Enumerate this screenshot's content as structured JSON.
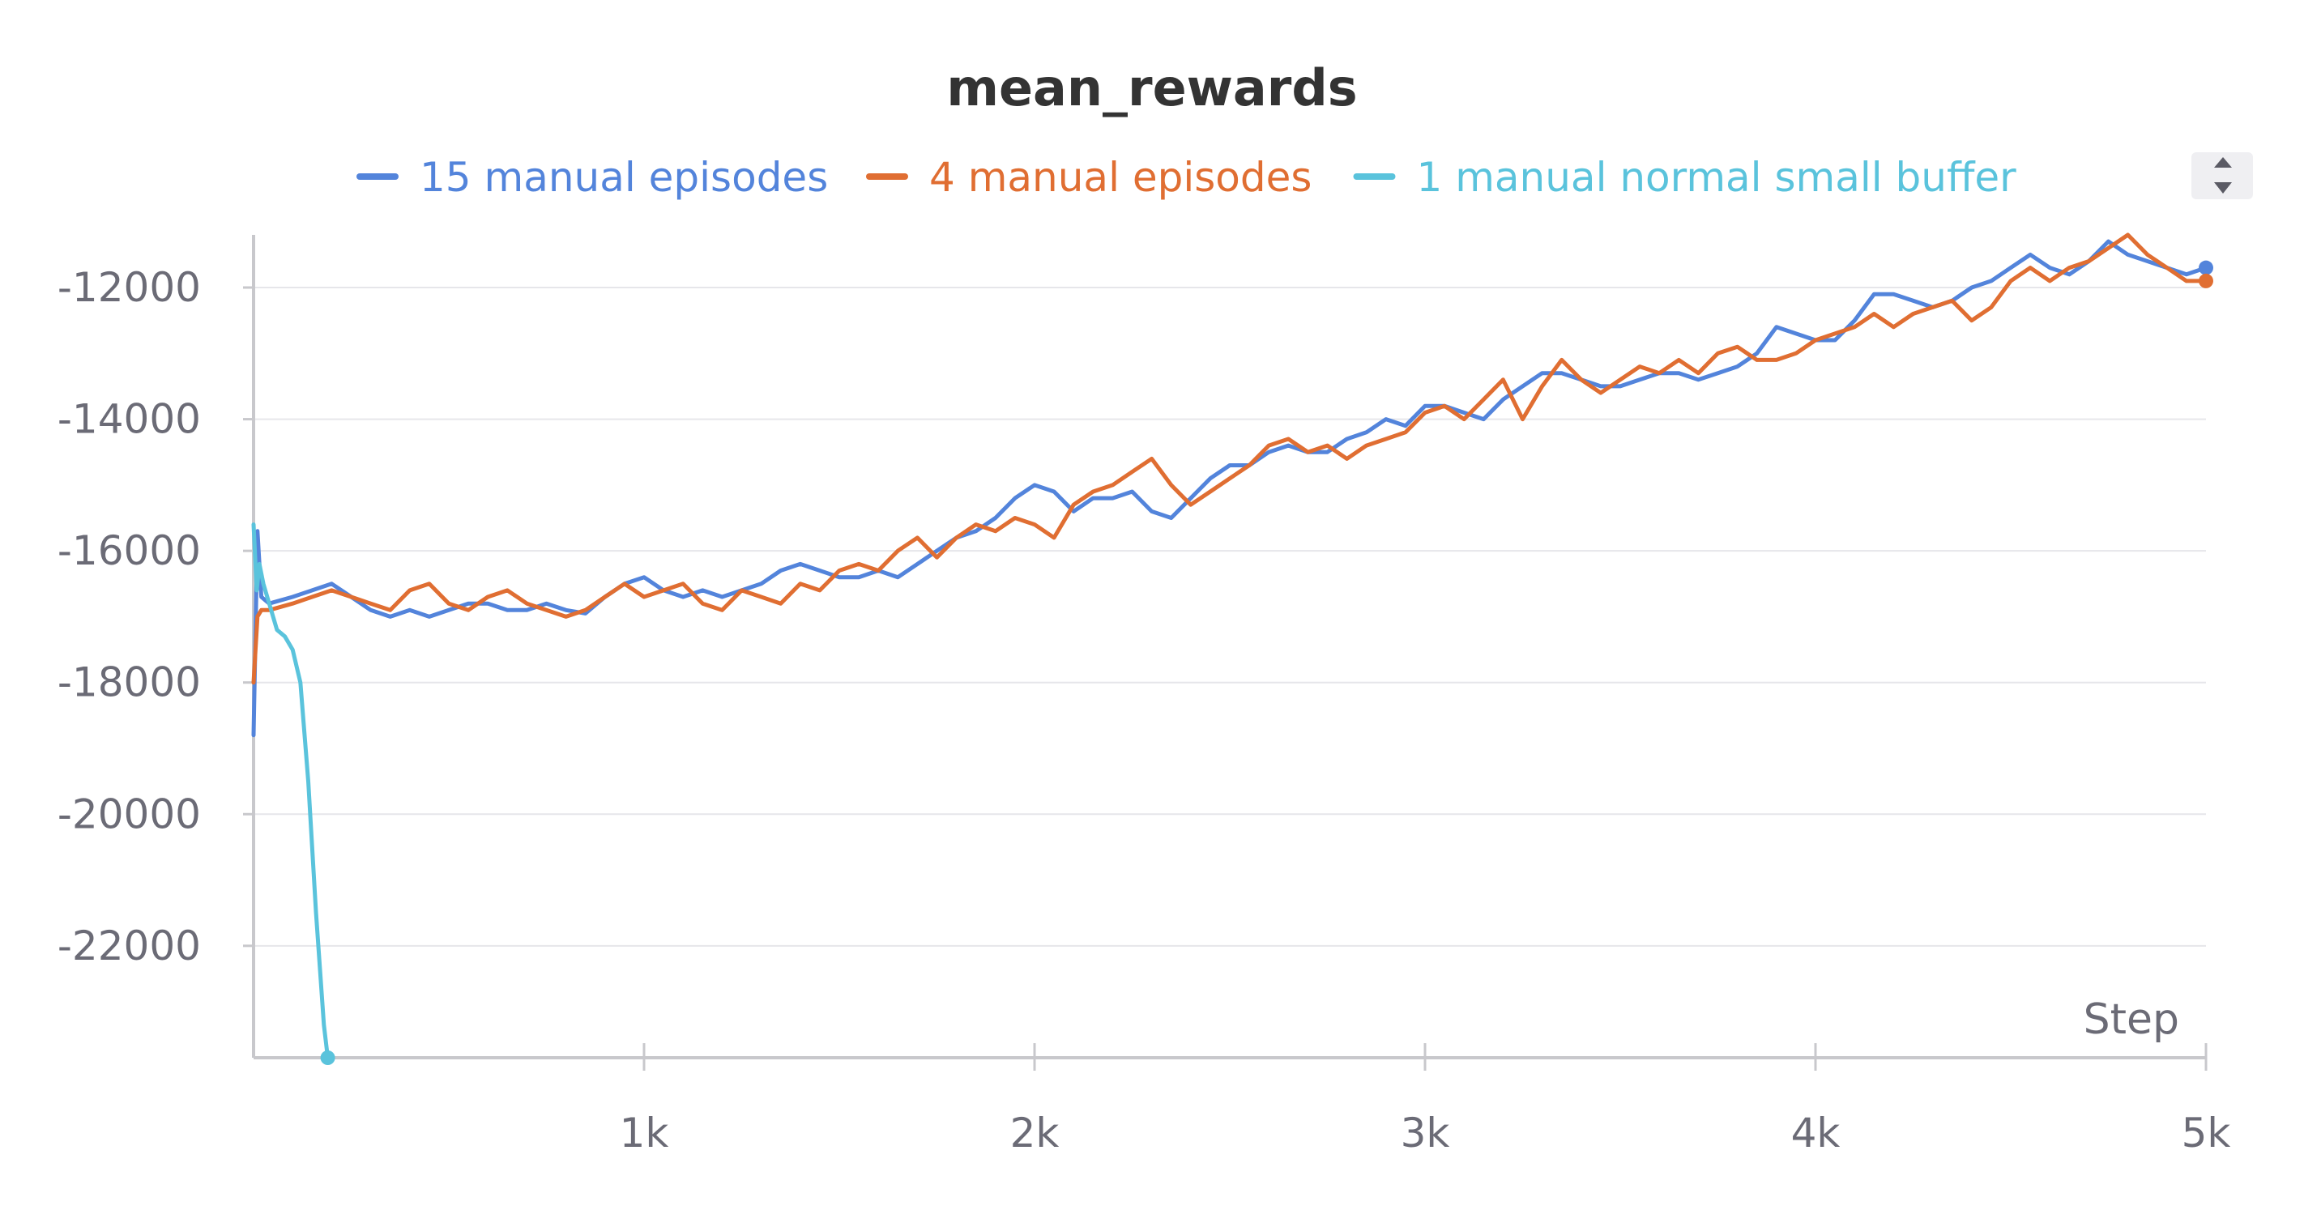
{
  "colors": {
    "series_0": "#5384db",
    "series_1": "#e06e32",
    "series_2": "#5ac3dc",
    "axis": "#c8c8cc",
    "grid": "#e6e6ea",
    "tick_text": "#6b6b76"
  },
  "chart_data": {
    "type": "line",
    "title": "mean_rewards",
    "xlabel": "Step",
    "ylabel": "",
    "xlim": [
      0,
      5000
    ],
    "ylim": [
      -23700,
      -11200
    ],
    "xticks": [
      {
        "value": 1000,
        "label": "1k"
      },
      {
        "value": 2000,
        "label": "2k"
      },
      {
        "value": 3000,
        "label": "3k"
      },
      {
        "value": 4000,
        "label": "4k"
      },
      {
        "value": 5000,
        "label": "5k"
      }
    ],
    "yticks": [
      {
        "value": -12000,
        "label": "-12000"
      },
      {
        "value": -14000,
        "label": "-14000"
      },
      {
        "value": -16000,
        "label": "-16000"
      },
      {
        "value": -18000,
        "label": "-18000"
      },
      {
        "value": -20000,
        "label": "-20000"
      },
      {
        "value": -22000,
        "label": "-22000"
      }
    ],
    "grid": true,
    "legend_position": "top",
    "series": [
      {
        "name": "15 manual episodes",
        "color": "#5384db",
        "x": [
          0,
          10,
          20,
          40,
          100,
          150,
          200,
          250,
          300,
          350,
          400,
          450,
          500,
          550,
          600,
          650,
          700,
          750,
          800,
          850,
          900,
          950,
          1000,
          1050,
          1100,
          1150,
          1200,
          1250,
          1300,
          1350,
          1400,
          1450,
          1500,
          1550,
          1600,
          1650,
          1700,
          1750,
          1800,
          1850,
          1900,
          1950,
          2000,
          2050,
          2100,
          2150,
          2200,
          2250,
          2300,
          2350,
          2400,
          2450,
          2500,
          2550,
          2600,
          2650,
          2700,
          2750,
          2800,
          2850,
          2900,
          2950,
          3000,
          3050,
          3100,
          3150,
          3200,
          3250,
          3300,
          3350,
          3400,
          3450,
          3500,
          3550,
          3600,
          3650,
          3700,
          3750,
          3800,
          3850,
          3900,
          3950,
          4000,
          4050,
          4100,
          4150,
          4200,
          4250,
          4300,
          4350,
          4400,
          4450,
          4500,
          4550,
          4600,
          4650,
          4700,
          4750,
          4800,
          4850,
          4900,
          4950,
          5000
        ],
        "y": [
          -18800,
          -15700,
          -16700,
          -16800,
          -16700,
          -16600,
          -16500,
          -16700,
          -16900,
          -17000,
          -16900,
          -17000,
          -16900,
          -16800,
          -16800,
          -16900,
          -16900,
          -16800,
          -16900,
          -16950,
          -16700,
          -16500,
          -16400,
          -16600,
          -16700,
          -16600,
          -16700,
          -16600,
          -16500,
          -16300,
          -16200,
          -16300,
          -16400,
          -16400,
          -16300,
          -16400,
          -16200,
          -16000,
          -15800,
          -15700,
          -15500,
          -15200,
          -15000,
          -15100,
          -15400,
          -15200,
          -15200,
          -15100,
          -15400,
          -15500,
          -15200,
          -14900,
          -14700,
          -14700,
          -14500,
          -14400,
          -14500,
          -14500,
          -14300,
          -14200,
          -14000,
          -14100,
          -13800,
          -13800,
          -13900,
          -14000,
          -13700,
          -13500,
          -13300,
          -13300,
          -13400,
          -13500,
          -13500,
          -13400,
          -13300,
          -13300,
          -13400,
          -13300,
          -13200,
          -13000,
          -12600,
          -12700,
          -12800,
          -12800,
          -12500,
          -12100,
          -12100,
          -12200,
          -12300,
          -12200,
          -12000,
          -11900,
          -11700,
          -11500,
          -11700,
          -11800,
          -11600,
          -11300,
          -11500,
          -11600,
          -11700,
          -11800,
          -11700
        ]
      },
      {
        "name": "4 manual episodes",
        "color": "#e06e32",
        "x": [
          0,
          10,
          20,
          40,
          100,
          150,
          200,
          250,
          300,
          350,
          400,
          450,
          500,
          550,
          600,
          650,
          700,
          750,
          800,
          850,
          900,
          950,
          1000,
          1050,
          1100,
          1150,
          1200,
          1250,
          1300,
          1350,
          1400,
          1450,
          1500,
          1550,
          1600,
          1650,
          1700,
          1750,
          1800,
          1850,
          1900,
          1950,
          2000,
          2050,
          2100,
          2150,
          2200,
          2250,
          2300,
          2350,
          2400,
          2450,
          2500,
          2550,
          2600,
          2650,
          2700,
          2750,
          2800,
          2850,
          2900,
          2950,
          3000,
          3050,
          3100,
          3150,
          3200,
          3250,
          3300,
          3350,
          3400,
          3450,
          3500,
          3550,
          3600,
          3650,
          3700,
          3750,
          3800,
          3850,
          3900,
          3950,
          4000,
          4050,
          4100,
          4150,
          4200,
          4250,
          4300,
          4350,
          4400,
          4450,
          4500,
          4550,
          4600,
          4650,
          4700,
          4750,
          4800,
          4850,
          4900,
          4950,
          5000
        ],
        "y": [
          -18000,
          -17000,
          -16900,
          -16900,
          -16800,
          -16700,
          -16600,
          -16700,
          -16800,
          -16900,
          -16600,
          -16500,
          -16800,
          -16900,
          -16700,
          -16600,
          -16800,
          -16900,
          -17000,
          -16900,
          -16700,
          -16500,
          -16700,
          -16600,
          -16500,
          -16800,
          -16900,
          -16600,
          -16700,
          -16800,
          -16500,
          -16600,
          -16300,
          -16200,
          -16300,
          -16000,
          -15800,
          -16100,
          -15800,
          -15600,
          -15700,
          -15500,
          -15600,
          -15800,
          -15300,
          -15100,
          -15000,
          -14800,
          -14600,
          -15000,
          -15300,
          -15100,
          -14900,
          -14700,
          -14400,
          -14300,
          -14500,
          -14400,
          -14600,
          -14400,
          -14300,
          -14200,
          -13900,
          -13800,
          -14000,
          -13700,
          -13400,
          -14000,
          -13500,
          -13100,
          -13400,
          -13600,
          -13400,
          -13200,
          -13300,
          -13100,
          -13300,
          -13000,
          -12900,
          -13100,
          -13100,
          -13000,
          -12800,
          -12700,
          -12600,
          -12400,
          -12600,
          -12400,
          -12300,
          -12200,
          -12500,
          -12300,
          -11900,
          -11700,
          -11900,
          -11700,
          -11600,
          -11400,
          -11200,
          -11500,
          -11700,
          -11900,
          -11900
        ]
      },
      {
        "name": "1 manual normal small buffer",
        "color": "#5ac3dc",
        "x": [
          0,
          8,
          15,
          25,
          40,
          60,
          80,
          100,
          120,
          140,
          160,
          180,
          190
        ],
        "y": [
          -15600,
          -16600,
          -16200,
          -16500,
          -16800,
          -17200,
          -17300,
          -17500,
          -18000,
          -19500,
          -21500,
          -23200,
          -23700
        ]
      }
    ]
  }
}
